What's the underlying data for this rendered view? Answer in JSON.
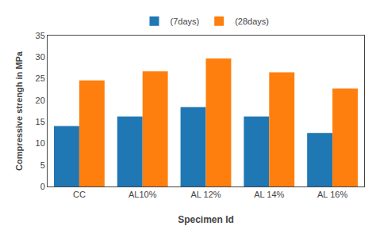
{
  "chart_data": {
    "type": "bar",
    "xlabel": "Specimen Id",
    "ylabel": "Compressive strengh in MPa",
    "categories": [
      "CC",
      "AL10%",
      "AL 12%",
      "AL 14%",
      "AL 16%"
    ],
    "series": [
      {
        "name": "(7days)",
        "values": [
          14.0,
          16.2,
          18.4,
          16.2,
          12.4
        ]
      },
      {
        "name": "(28days)",
        "values": [
          24.6,
          26.7,
          29.7,
          26.5,
          22.7
        ]
      }
    ],
    "ylim": [
      0,
      35
    ],
    "yticks": [
      0,
      5,
      10,
      15,
      20,
      25,
      30,
      35
    ],
    "grid": false,
    "legend": "top"
  }
}
